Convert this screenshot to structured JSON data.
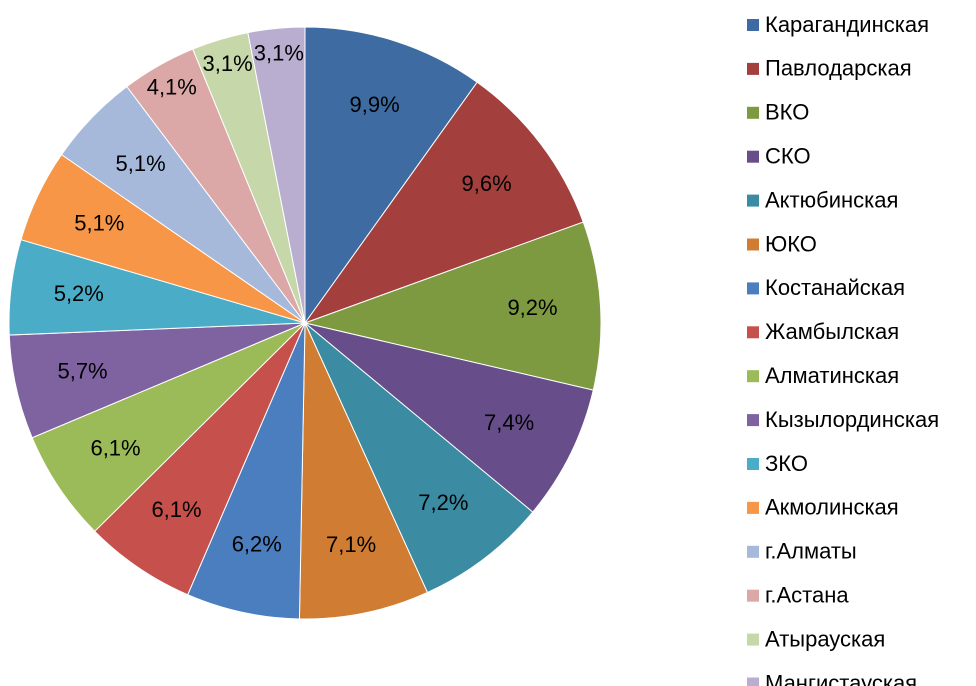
{
  "chart_data": {
    "type": "pie",
    "categories": [
      "Карагандинская",
      "Павлодарская",
      "ВКО",
      "СКО",
      "Актюбинская",
      "ЮКО",
      "Костанайская",
      "Жамбылская",
      "Алматинская",
      "Кызылординская",
      "ЗКО",
      "Акмолинская",
      "г.Алматы",
      "г.Астана",
      "Атырауская",
      "Мангистауская"
    ],
    "values": [
      9.9,
      9.6,
      9.2,
      7.4,
      7.2,
      7.1,
      6.2,
      6.1,
      6.1,
      5.7,
      5.2,
      5.1,
      5.1,
      4.1,
      3.1,
      3.1
    ],
    "value_labels": [
      "9,9%",
      "9,6%",
      "9,2%",
      "7,4%",
      "7,2%",
      "7,1%",
      "6,2%",
      "6,1%",
      "6,1%",
      "5,7%",
      "5,2%",
      "5,1%",
      "5,1%",
      "4,1%",
      "3,1%",
      "3,1%"
    ],
    "colors": [
      "#3e6ba1",
      "#a33f3c",
      "#7e9a40",
      "#674e8a",
      "#3b8ca2",
      "#d07c32",
      "#4a7ebf",
      "#c6504c",
      "#9bbb59",
      "#7f63a1",
      "#4aacc6",
      "#f79646",
      "#a7b9db",
      "#dba8a7",
      "#c6d7a9",
      "#b9aed0"
    ],
    "legend": "right"
  }
}
